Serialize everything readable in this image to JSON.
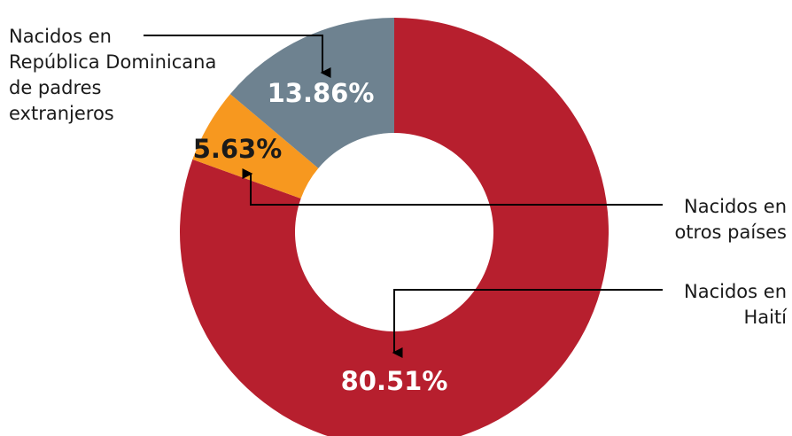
{
  "chart_data": {
    "type": "pie",
    "variant": "donut",
    "title": "",
    "slices": [
      {
        "label": "Nacidos en Haití",
        "value": 80.51,
        "display": "80.51%",
        "color": "#b71f2e",
        "label_color": "#ffffff"
      },
      {
        "label": "Nacidos en otros países",
        "value": 5.63,
        "display": "5.63%",
        "color": "#f7981f",
        "label_color": "#1a1a1a"
      },
      {
        "label": "Nacidos en República Dominicana de padres extranjeros",
        "value": 13.86,
        "display": "13.86%",
        "color": "#6e8290",
        "label_color": "#ffffff"
      }
    ],
    "callouts": {
      "haiti": [
        "Nacidos en",
        "Haití"
      ],
      "otros": [
        "Nacidos en",
        "otros países"
      ],
      "rd": [
        "Nacidos en",
        "República Dominicana",
        "de padres",
        "extranjeros"
      ]
    }
  }
}
